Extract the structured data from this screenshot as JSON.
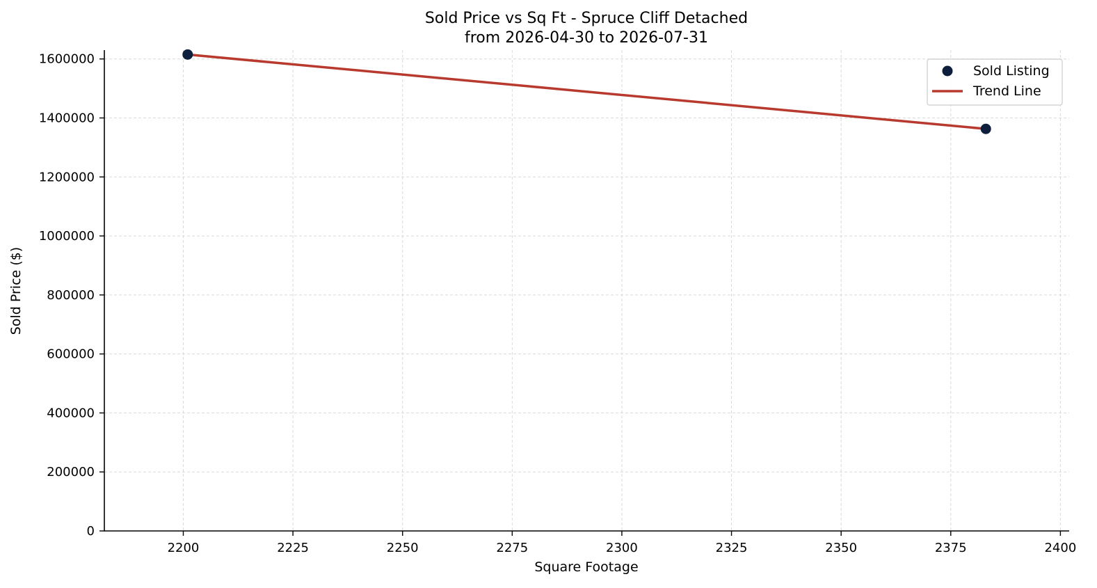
{
  "chart_data": {
    "type": "scatter",
    "title": "Sold Price vs Sq Ft - Spruce Cliff Detached",
    "subtitle": "from 2026-04-30 to 2026-07-31",
    "xlabel": "Square Footage",
    "ylabel": "Sold Price ($)",
    "xlim": [
      2182,
      2402
    ],
    "ylim": [
      0,
      1630000
    ],
    "xticks": [
      2200,
      2225,
      2250,
      2275,
      2300,
      2325,
      2350,
      2375,
      2400
    ],
    "yticks": [
      0,
      200000,
      400000,
      600000,
      800000,
      1000000,
      1200000,
      1400000,
      1600000
    ],
    "grid": true,
    "legend_position": "top-right",
    "series": [
      {
        "name": "Sold Listing",
        "kind": "scatter",
        "color": "#0d1f3c",
        "points": [
          {
            "x": 2201,
            "y": 1615000
          },
          {
            "x": 2383,
            "y": 1363000
          }
        ]
      },
      {
        "name": "Trend Line",
        "kind": "line",
        "color": "#b83a2e",
        "points": [
          {
            "x": 2201,
            "y": 1615000
          },
          {
            "x": 2383,
            "y": 1363000
          }
        ]
      }
    ]
  }
}
